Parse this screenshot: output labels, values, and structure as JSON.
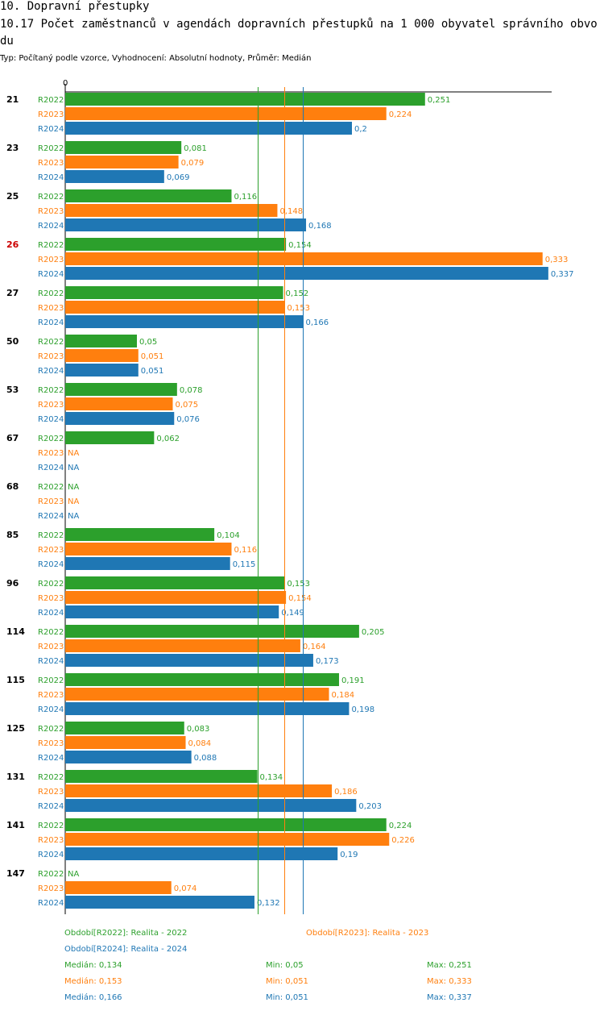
{
  "header": {
    "section": "10. Dopravní přestupky",
    "title": "10.17 Počet zaměstnanců v agendách dopravních přestupků na 1 000 obyvatel správního obvodu",
    "subtitle": "Typ: Počítaný podle vzorce, Vyhodnocení: Absolutní hodnoty, Průměr: Medián"
  },
  "colors": {
    "R2022": "#2ca02c",
    "R2023": "#ff7f0e",
    "R2024": "#1f77b4",
    "highlight": "#cc0000"
  },
  "chart_data": {
    "type": "bar",
    "orientation": "horizontal",
    "axis_zero_label": "0",
    "xlim": [
      0,
      0.34
    ],
    "na_label": "NA",
    "highlight_category": "26",
    "categories": [
      "21",
      "23",
      "25",
      "26",
      "27",
      "50",
      "53",
      "67",
      "68",
      "85",
      "96",
      "114",
      "115",
      "125",
      "131",
      "141",
      "147"
    ],
    "series": [
      {
        "name": "R2022",
        "values": [
          0.251,
          0.081,
          0.116,
          0.154,
          0.152,
          0.05,
          0.078,
          0.062,
          null,
          0.104,
          0.153,
          0.205,
          0.191,
          0.083,
          0.134,
          0.224,
          null
        ],
        "labels": [
          "0,251",
          "0,081",
          "0,116",
          "0,154",
          "0,152",
          "0,05",
          "0,078",
          "0,062",
          "NA",
          "0,104",
          "0,153",
          "0,205",
          "0,191",
          "0,083",
          "0,134",
          "0,224",
          "NA"
        ]
      },
      {
        "name": "R2023",
        "values": [
          0.224,
          0.079,
          0.148,
          0.333,
          0.153,
          0.051,
          0.075,
          null,
          null,
          0.116,
          0.154,
          0.164,
          0.184,
          0.084,
          0.186,
          0.226,
          0.074
        ],
        "labels": [
          "0,224",
          "0,079",
          "0,148",
          "0,333",
          "0,153",
          "0,051",
          "0,075",
          "NA",
          "NA",
          "0,116",
          "0,154",
          "0,164",
          "0,184",
          "0,084",
          "0,186",
          "0,226",
          "0,074"
        ]
      },
      {
        "name": "R2024",
        "values": [
          0.2,
          0.069,
          0.168,
          0.337,
          0.166,
          0.051,
          0.076,
          null,
          null,
          0.115,
          0.149,
          0.173,
          0.198,
          0.088,
          0.203,
          0.19,
          0.132
        ],
        "labels": [
          "0,2",
          "0,069",
          "0,168",
          "0,337",
          "0,166",
          "0,051",
          "0,076",
          "NA",
          "NA",
          "0,115",
          "0,149",
          "0,173",
          "0,198",
          "0,088",
          "0,203",
          "0,19",
          "0,132"
        ]
      }
    ],
    "medians": [
      {
        "series": "R2022",
        "value": 0.134
      },
      {
        "series": "R2023",
        "value": 0.153
      },
      {
        "series": "R2024",
        "value": 0.166
      }
    ]
  },
  "legend": {
    "periods": [
      {
        "series": "R2022",
        "text": "Období[R2022]: Realita - 2022"
      },
      {
        "series": "R2023",
        "text": "Období[R2023]: Realita - 2023"
      },
      {
        "series": "R2024",
        "text": "Období[R2024]: Realita - 2024"
      }
    ],
    "stats": [
      {
        "series": "R2022",
        "median": "Medián: 0,134",
        "min": "Min: 0,05",
        "max": "Max: 0,251"
      },
      {
        "series": "R2023",
        "median": "Medián: 0,153",
        "min": "Min: 0,051",
        "max": "Max: 0,333"
      },
      {
        "series": "R2024",
        "median": "Medián: 0,166",
        "min": "Min: 0,051",
        "max": "Max: 0,337"
      }
    ]
  }
}
